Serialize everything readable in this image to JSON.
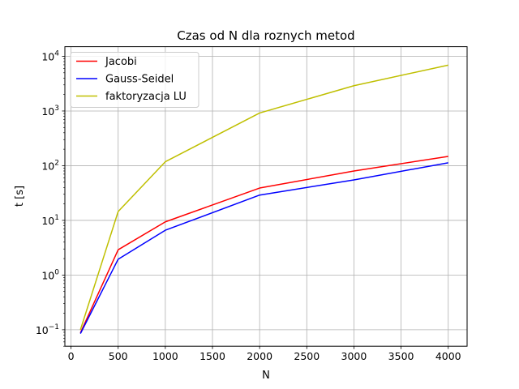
{
  "chart_data": {
    "type": "line",
    "title": "Czas od N dla roznych metod",
    "xlabel": "N",
    "ylabel": "t [s]",
    "xlim": [
      -65,
      4200
    ],
    "ylim": [
      0.05,
      15000
    ],
    "yscale": "log",
    "grid": true,
    "legend_position": "top-left",
    "x_ticks": [
      0,
      500,
      1000,
      1500,
      2000,
      2500,
      3000,
      3500,
      4000
    ],
    "y_ticks": [
      {
        "value": 0.1,
        "base": "10",
        "exp": "−1"
      },
      {
        "value": 1,
        "base": "10",
        "exp": "0"
      },
      {
        "value": 10,
        "base": "10",
        "exp": "1"
      },
      {
        "value": 100,
        "base": "10",
        "exp": "2"
      },
      {
        "value": 1000,
        "base": "10",
        "exp": "3"
      },
      {
        "value": 10000,
        "base": "10",
        "exp": "4"
      }
    ],
    "x": [
      100,
      500,
      1000,
      2000,
      3000,
      4000
    ],
    "series": [
      {
        "name": "Jacobi",
        "color": "#ff0000",
        "values": [
          0.088,
          2.9,
          9.4,
          39,
          80,
          148
        ]
      },
      {
        "name": "Gauss-Seidel",
        "color": "#0000ff",
        "values": [
          0.085,
          1.95,
          6.6,
          29,
          55,
          113
        ]
      },
      {
        "name": "faktoryzacja LU",
        "color": "#bfbf00",
        "values": [
          0.1,
          14.5,
          118,
          920,
          2900,
          6900
        ]
      }
    ]
  }
}
